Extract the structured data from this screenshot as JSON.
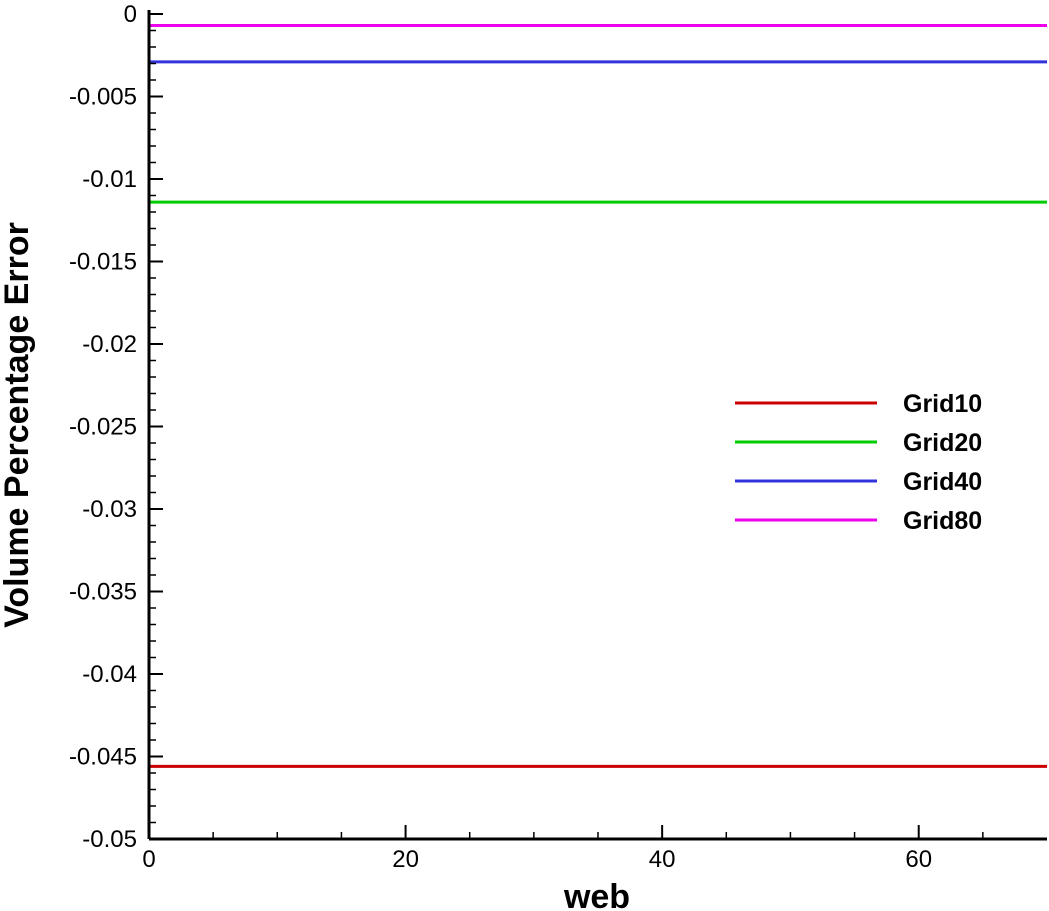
{
  "chart_data": {
    "type": "line",
    "title": "",
    "xlabel": "web",
    "ylabel": "Volume Percentage Error",
    "xlim": [
      0,
      70
    ],
    "ylim": [
      -0.05,
      0
    ],
    "x_ticks": [
      0,
      20,
      40,
      60
    ],
    "x_tick_labels": [
      "0",
      "20",
      "40",
      "60"
    ],
    "y_ticks": [
      0,
      -0.005,
      -0.01,
      -0.015,
      -0.02,
      -0.025,
      -0.03,
      -0.035,
      -0.04,
      -0.045,
      -0.05
    ],
    "y_tick_labels": [
      "0",
      "-0.005",
      "-0.01",
      "-0.015",
      "-0.02",
      "-0.025",
      "-0.03",
      "-0.035",
      "-0.04",
      "-0.045",
      "-0.05"
    ],
    "grid": false,
    "legend_position": "right",
    "series": [
      {
        "name": "Grid10",
        "color": "#cc0000",
        "x": [
          0,
          70
        ],
        "values": [
          -0.0456,
          -0.0456
        ]
      },
      {
        "name": "Grid20",
        "color": "#00cc00",
        "x": [
          0,
          70
        ],
        "values": [
          -0.0114,
          -0.0114
        ]
      },
      {
        "name": "Grid40",
        "color": "#3333dd",
        "x": [
          0,
          70
        ],
        "values": [
          -0.0029,
          -0.0029
        ]
      },
      {
        "name": "Grid80",
        "color": "#ee00ee",
        "x": [
          0,
          70
        ],
        "values": [
          -0.0007,
          -0.0007
        ]
      }
    ]
  }
}
